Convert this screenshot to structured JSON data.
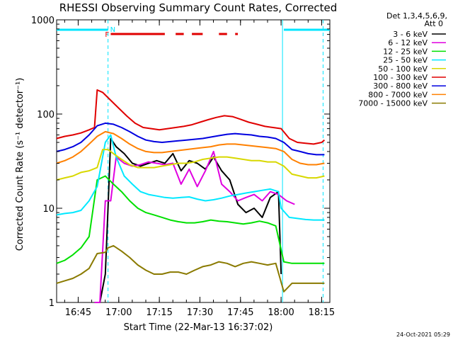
{
  "title": "RHESSI Observing Summary Count Rates, Corrected",
  "footer_stamp": "24-Oct-2021 05:29",
  "colors": {
    "frame": "#000000",
    "night_bar": "#00e5ff",
    "flare_bar": "#e00000",
    "s3_6": "#000000",
    "s6_12": "#e000e0",
    "s12_25": "#00e000",
    "s25_50": "#00e8ff",
    "s50_100": "#d8d800",
    "s100_300": "#e00000",
    "s300_800": "#0000e0",
    "s800_7000": "#ff8000",
    "s7000_15000": "#8a7a00"
  },
  "chart_data": {
    "type": "line",
    "title": "RHESSI Observing Summary Count Rates, Corrected",
    "xlabel": "Start Time (22-Mar-13 16:37:02)",
    "ylabel": "Corrected Count Rate (s⁻¹ detector⁻¹)",
    "yscale": "log",
    "ylim": [
      1,
      1000
    ],
    "xlim_minutes": [
      0,
      101
    ],
    "x_ticks": [
      "16:45",
      "17:00",
      "17:15",
      "17:30",
      "17:45",
      "18:00",
      "18:15"
    ],
    "x_tick_minutes": [
      7.97,
      22.97,
      37.97,
      52.97,
      67.97,
      82.97,
      97.97
    ],
    "y_ticks": [
      "1",
      "10",
      "100",
      "1000"
    ],
    "y_tick_values": [
      1,
      10,
      100,
      1000
    ],
    "legend_header": [
      "Det 1,3,4,5,6,9,",
      "Att 0"
    ],
    "legend_position": "right",
    "status_markers": {
      "night_label": "N",
      "flare_label": "F",
      "night_intervals_minutes": [
        [
          0,
          19
        ],
        [
          84,
          101
        ]
      ],
      "flare_intervals_minutes": [
        [
          20,
          40
        ],
        [
          44,
          47
        ],
        [
          50,
          54
        ],
        [
          60,
          63
        ],
        [
          66,
          67
        ]
      ]
    },
    "vertical_markers_minutes": [
      19,
      83.5,
      98.5
    ],
    "series": [
      {
        "name": "3 - 6 keV",
        "color_key": "s3_6",
        "x": [
          14,
          16,
          18,
          19,
          20,
          22,
          25,
          28,
          31,
          34,
          37,
          40,
          43,
          46,
          49,
          52,
          55,
          58,
          61,
          64,
          67,
          70,
          73,
          76,
          79,
          82,
          83
        ],
        "y": [
          1,
          1,
          2,
          10,
          55,
          45,
          38,
          30,
          28,
          30,
          32,
          30,
          38,
          25,
          32,
          30,
          26,
          35,
          25,
          20,
          11,
          9,
          10,
          8,
          13,
          15,
          2
        ]
      },
      {
        "name": "6 - 12 keV",
        "color_key": "s6_12",
        "x": [
          14,
          16,
          18,
          19,
          20,
          22,
          25,
          28,
          31,
          34,
          37,
          40,
          43,
          46,
          49,
          52,
          55,
          58,
          61,
          64,
          67,
          70,
          73,
          76,
          79,
          82,
          85,
          88
        ],
        "y": [
          1,
          1,
          12,
          12,
          12,
          35,
          30,
          28,
          29,
          31,
          30,
          29,
          30,
          18,
          26,
          17,
          25,
          40,
          18,
          15,
          12,
          13,
          14,
          12,
          15,
          14,
          12,
          11
        ]
      },
      {
        "name": "12 - 25 keV",
        "color_key": "s12_25",
        "x": [
          0,
          3,
          6,
          9,
          12,
          15,
          18,
          21,
          24,
          27,
          30,
          33,
          36,
          39,
          42,
          45,
          48,
          51,
          54,
          57,
          60,
          63,
          66,
          69,
          72,
          75,
          78,
          81,
          84,
          87,
          90,
          93,
          96,
          99
        ],
        "y": [
          2.6,
          2.8,
          3.2,
          3.8,
          5,
          20,
          22,
          18,
          15,
          12,
          10,
          9,
          8.5,
          8,
          7.5,
          7.2,
          7,
          7,
          7.2,
          7.5,
          7.3,
          7.2,
          7,
          6.8,
          7,
          7.3,
          7,
          6.5,
          2.7,
          2.6,
          2.6,
          2.6,
          2.6,
          2.6
        ]
      },
      {
        "name": "25 - 50 keV",
        "color_key": "s25_50",
        "x": [
          0,
          3,
          6,
          9,
          12,
          15,
          18,
          20,
          22,
          25,
          28,
          31,
          34,
          37,
          40,
          43,
          46,
          49,
          52,
          55,
          58,
          61,
          64,
          67,
          70,
          73,
          76,
          79,
          82,
          83,
          86,
          89,
          92,
          95,
          98,
          99
        ],
        "y": [
          8.5,
          8.8,
          9,
          9.5,
          12,
          17,
          50,
          60,
          35,
          22,
          18,
          15,
          14,
          13.5,
          13,
          12.8,
          13,
          13.2,
          12.5,
          12,
          12.3,
          12.8,
          13.5,
          14,
          14.5,
          15,
          15.5,
          16,
          15,
          10,
          8,
          7.8,
          7.6,
          7.5,
          7.5,
          7.5
        ]
      },
      {
        "name": "50 - 100 keV",
        "color_key": "s50_100",
        "x": [
          0,
          3,
          6,
          9,
          12,
          15,
          17,
          19,
          21,
          24,
          27,
          30,
          33,
          36,
          39,
          42,
          45,
          48,
          51,
          54,
          57,
          60,
          63,
          66,
          69,
          72,
          75,
          78,
          81,
          84,
          87,
          90,
          93,
          96,
          99
        ],
        "y": [
          20,
          21,
          22,
          24,
          25,
          27,
          42,
          42,
          38,
          33,
          29,
          27,
          27,
          27,
          28,
          29,
          30,
          30,
          31,
          33,
          34,
          35,
          35,
          34,
          33,
          32,
          32,
          31,
          31,
          28,
          23,
          22,
          21,
          21,
          22
        ]
      },
      {
        "name": "100 - 300 keV",
        "color_key": "s100_300",
        "x": [
          0,
          3,
          6,
          9,
          12,
          14,
          15,
          17,
          20,
          23,
          26,
          29,
          32,
          35,
          38,
          41,
          44,
          47,
          50,
          53,
          56,
          59,
          62,
          65,
          68,
          71,
          74,
          77,
          80,
          83,
          86,
          89,
          92,
          95,
          98,
          99
        ],
        "y": [
          55,
          58,
          60,
          63,
          68,
          72,
          180,
          170,
          140,
          115,
          95,
          80,
          72,
          70,
          68,
          70,
          72,
          74,
          77,
          82,
          87,
          92,
          96,
          94,
          88,
          82,
          78,
          74,
          72,
          70,
          55,
          50,
          49,
          48,
          50,
          53
        ]
      },
      {
        "name": "300 - 800 keV",
        "color_key": "s300_800",
        "x": [
          0,
          3,
          6,
          9,
          12,
          15,
          18,
          21,
          24,
          27,
          30,
          33,
          36,
          39,
          42,
          45,
          48,
          51,
          54,
          57,
          60,
          63,
          66,
          69,
          72,
          75,
          78,
          81,
          84,
          87,
          90,
          93,
          96,
          99
        ],
        "y": [
          40,
          42,
          45,
          50,
          60,
          75,
          80,
          78,
          72,
          65,
          58,
          53,
          51,
          50,
          51,
          52,
          53,
          54,
          55,
          57,
          59,
          61,
          62,
          61,
          60,
          58,
          57,
          55,
          50,
          42,
          40,
          38,
          37,
          37
        ]
      },
      {
        "name": "800 - 7000 keV",
        "color_key": "s800_7000",
        "x": [
          0,
          3,
          6,
          9,
          12,
          15,
          18,
          21,
          24,
          27,
          30,
          33,
          36,
          39,
          42,
          45,
          48,
          51,
          54,
          57,
          60,
          63,
          66,
          69,
          72,
          75,
          78,
          81,
          84,
          87,
          90,
          93,
          96,
          99
        ],
        "y": [
          30,
          32,
          35,
          40,
          48,
          58,
          65,
          62,
          55,
          48,
          43,
          40,
          39,
          39,
          40,
          41,
          42,
          43,
          44,
          45,
          47,
          48,
          48,
          47,
          46,
          45,
          44,
          43,
          40,
          33,
          30,
          29,
          29,
          30
        ]
      },
      {
        "name": "7000 - 15000 keV",
        "color_key": "s7000_15000",
        "x": [
          0,
          3,
          6,
          9,
          12,
          15,
          18,
          19,
          21,
          24,
          27,
          30,
          33,
          36,
          39,
          42,
          45,
          48,
          51,
          54,
          57,
          60,
          63,
          66,
          69,
          72,
          75,
          78,
          81,
          84,
          87,
          90,
          93,
          96,
          99
        ],
        "y": [
          1.6,
          1.7,
          1.8,
          2.0,
          2.3,
          3.3,
          3.4,
          3.8,
          4.0,
          3.5,
          3.0,
          2.5,
          2.2,
          2.0,
          2.0,
          2.1,
          2.1,
          2.0,
          2.2,
          2.4,
          2.5,
          2.7,
          2.6,
          2.4,
          2.6,
          2.7,
          2.6,
          2.5,
          2.6,
          1.3,
          1.6,
          1.6,
          1.6,
          1.6,
          1.6
        ]
      }
    ]
  }
}
